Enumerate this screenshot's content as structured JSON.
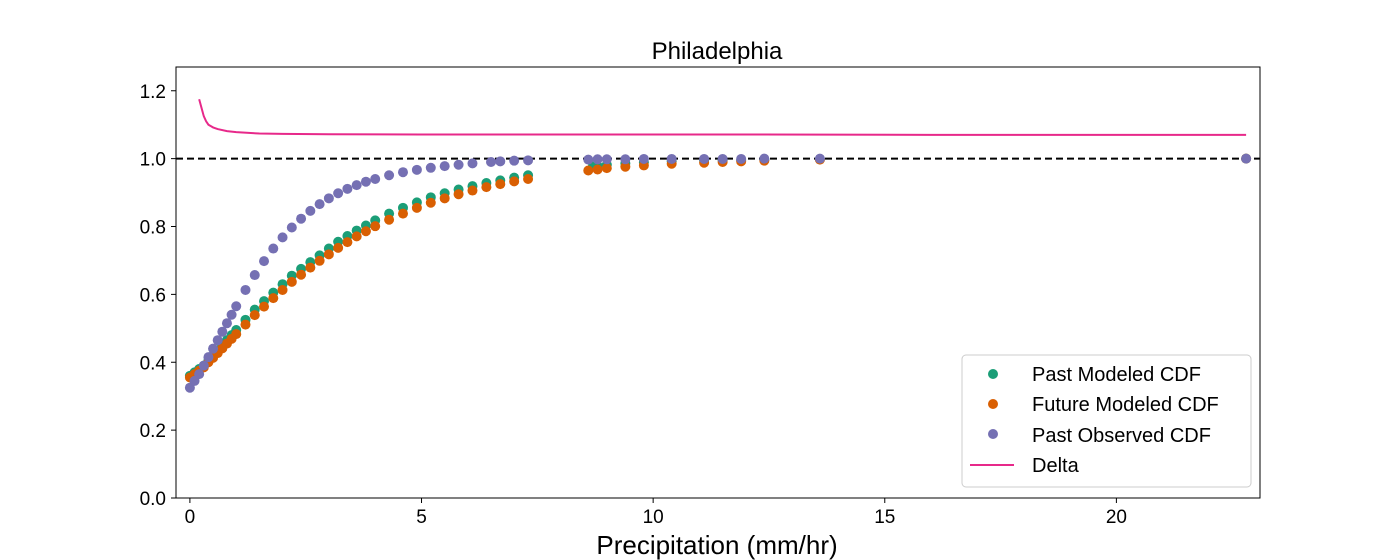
{
  "chart_data": {
    "type": "scatter",
    "title": "Philadelphia",
    "xlabel": "Precipitation (mm/hr)",
    "ylabel": "",
    "xlim": [
      -0.3,
      23.1
    ],
    "ylim": [
      0.0,
      1.27
    ],
    "xticks": [
      0,
      5,
      10,
      15,
      20
    ],
    "yticks": [
      0.0,
      0.2,
      0.4,
      0.6,
      0.8,
      1.0,
      1.2
    ],
    "grid": false,
    "legend": "lower-right",
    "reference_line": {
      "y": 1.0,
      "style": "dashed",
      "color": "#000000"
    },
    "series": [
      {
        "name": "Past Modeled CDF",
        "kind": "scatter",
        "color": "#1b9e77",
        "x": [
          0.0,
          0.1,
          0.2,
          0.3,
          0.4,
          0.5,
          0.6,
          0.7,
          0.8,
          0.9,
          1.0,
          1.2,
          1.4,
          1.6,
          1.8,
          2.0,
          2.2,
          2.4,
          2.6,
          2.8,
          3.0,
          3.2,
          3.4,
          3.6,
          3.8,
          4.0,
          4.3,
          4.6,
          4.9,
          5.2,
          5.5,
          5.8,
          6.1,
          6.4,
          6.7,
          7.0,
          7.3,
          8.7,
          8.8,
          9.0,
          9.4,
          9.8,
          10.4,
          11.1,
          11.5,
          11.9,
          12.4,
          13.6,
          22.8
        ],
        "y": [
          0.36,
          0.37,
          0.38,
          0.39,
          0.405,
          0.42,
          0.435,
          0.45,
          0.465,
          0.48,
          0.495,
          0.525,
          0.555,
          0.58,
          0.605,
          0.63,
          0.655,
          0.675,
          0.695,
          0.715,
          0.735,
          0.755,
          0.772,
          0.788,
          0.803,
          0.818,
          0.838,
          0.855,
          0.871,
          0.886,
          0.898,
          0.909,
          0.919,
          0.928,
          0.936,
          0.944,
          0.951,
          0.977,
          0.979,
          0.982,
          0.986,
          0.989,
          0.992,
          0.994,
          0.995,
          0.996,
          0.997,
          0.998,
          1.0
        ]
      },
      {
        "name": "Future Modeled CDF",
        "kind": "scatter",
        "color": "#d95f02",
        "x": [
          0.0,
          0.1,
          0.2,
          0.3,
          0.4,
          0.5,
          0.6,
          0.7,
          0.8,
          0.9,
          1.0,
          1.2,
          1.4,
          1.6,
          1.8,
          2.0,
          2.2,
          2.4,
          2.6,
          2.8,
          3.0,
          3.2,
          3.4,
          3.6,
          3.8,
          4.0,
          4.3,
          4.6,
          4.9,
          5.2,
          5.5,
          5.8,
          6.1,
          6.4,
          6.7,
          7.0,
          7.3,
          8.6,
          8.8,
          9.0,
          9.4,
          9.8,
          10.4,
          11.1,
          11.5,
          11.9,
          12.4,
          13.6,
          22.8
        ],
        "y": [
          0.355,
          0.365,
          0.375,
          0.385,
          0.4,
          0.413,
          0.427,
          0.441,
          0.455,
          0.469,
          0.483,
          0.511,
          0.539,
          0.564,
          0.589,
          0.613,
          0.637,
          0.658,
          0.679,
          0.699,
          0.718,
          0.737,
          0.754,
          0.771,
          0.786,
          0.801,
          0.82,
          0.838,
          0.855,
          0.87,
          0.883,
          0.895,
          0.906,
          0.916,
          0.925,
          0.933,
          0.94,
          0.965,
          0.968,
          0.972,
          0.976,
          0.98,
          0.985,
          0.988,
          0.99,
          0.992,
          0.994,
          0.997,
          1.0
        ]
      },
      {
        "name": "Past Observed CDF",
        "kind": "scatter",
        "color": "#7570b3",
        "x": [
          0.0,
          0.1,
          0.2,
          0.3,
          0.4,
          0.5,
          0.6,
          0.7,
          0.8,
          0.9,
          1.0,
          1.2,
          1.4,
          1.6,
          1.8,
          2.0,
          2.2,
          2.4,
          2.6,
          2.8,
          3.0,
          3.2,
          3.4,
          3.6,
          3.8,
          4.0,
          4.3,
          4.6,
          4.9,
          5.2,
          5.5,
          5.8,
          6.1,
          6.5,
          6.7,
          7.0,
          7.3,
          8.6,
          8.8,
          9.0,
          9.4,
          9.8,
          10.4,
          11.1,
          11.5,
          11.9,
          12.4,
          13.6,
          22.8
        ],
        "y": [
          0.325,
          0.345,
          0.365,
          0.39,
          0.415,
          0.44,
          0.465,
          0.49,
          0.515,
          0.54,
          0.565,
          0.613,
          0.657,
          0.698,
          0.735,
          0.768,
          0.797,
          0.823,
          0.846,
          0.866,
          0.883,
          0.898,
          0.911,
          0.922,
          0.932,
          0.94,
          0.951,
          0.96,
          0.967,
          0.973,
          0.978,
          0.982,
          0.986,
          0.99,
          0.992,
          0.994,
          0.995,
          0.997,
          0.998,
          0.998,
          0.998,
          0.999,
          0.999,
          0.999,
          0.999,
          0.999,
          1.0,
          1.0,
          1.0
        ]
      },
      {
        "name": "Delta",
        "kind": "line",
        "color": "#e7298a",
        "x": [
          0.2,
          0.25,
          0.3,
          0.35,
          0.4,
          0.5,
          0.6,
          0.8,
          1.0,
          1.5,
          2.0,
          3.0,
          5.0,
          8.0,
          12.0,
          16.0,
          20.0,
          22.8
        ],
        "y": [
          1.175,
          1.15,
          1.125,
          1.11,
          1.1,
          1.092,
          1.087,
          1.081,
          1.078,
          1.074,
          1.073,
          1.072,
          1.071,
          1.071,
          1.071,
          1.07,
          1.07,
          1.07
        ]
      }
    ]
  }
}
